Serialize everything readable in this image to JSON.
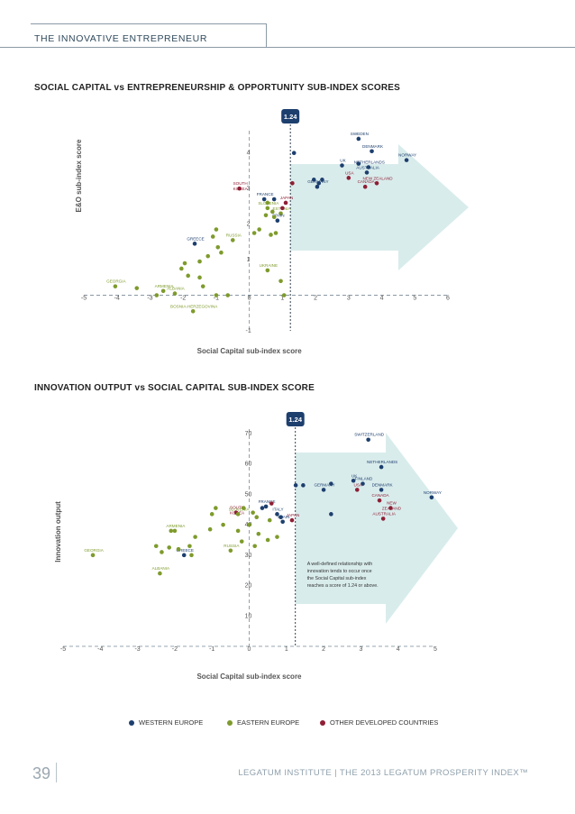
{
  "header": {
    "title": "THE INNOVATIVE ENTREPRENEUR"
  },
  "colors": {
    "western": "#1d3f6e",
    "eastern": "#7e9b2c",
    "other": "#8e1f35",
    "threshold_badge": "#1d3f6e",
    "arrow": "#d2e9e9"
  },
  "threshold_label": "1.24",
  "chart_data": [
    {
      "type": "scatter",
      "title": "SOCIAL CAPITAL vs ENTREPRENEURSHIP & OPPORTUNITY SUB-INDEX SCORES",
      "xlabel": "Social Capital sub-index score",
      "ylabel": "E&O sub-index score",
      "xlim": [
        -5,
        6
      ],
      "ylim": [
        -1,
        4.5
      ],
      "x_ticks": [
        "-5",
        "-4",
        "-3",
        "-2",
        "-1",
        "0",
        "1",
        "2",
        "3",
        "4",
        "5",
        "6"
      ],
      "y_ticks": [
        "-1",
        "1",
        "2",
        "3",
        "4"
      ],
      "threshold_x": 1.24,
      "points": [
        {
          "x": 3.3,
          "y": 4.4,
          "g": "western",
          "label": "SWEDEN"
        },
        {
          "x": 3.7,
          "y": 4.05,
          "g": "western",
          "label": "DENMARK"
        },
        {
          "x": 4.75,
          "y": 3.8,
          "g": "western",
          "label": "NORWAY"
        },
        {
          "x": 2.8,
          "y": 3.65,
          "g": "western",
          "label": "UK"
        },
        {
          "x": 3.6,
          "y": 3.6,
          "g": "western",
          "label": "NETHERLANDS"
        },
        {
          "x": 3.55,
          "y": 3.45,
          "g": "western",
          "label": "AUSTRALIA"
        },
        {
          "x": 3.0,
          "y": 3.3,
          "g": "other",
          "label": "USA"
        },
        {
          "x": 3.85,
          "y": 3.15,
          "g": "other",
          "label": "NEW ZEALAND"
        },
        {
          "x": 3.5,
          "y": 3.05,
          "g": "other",
          "label": "CANADA"
        },
        {
          "x": 2.05,
          "y": 3.05,
          "g": "western",
          "label": "GERMANY"
        },
        {
          "x": -0.3,
          "y": 3.0,
          "g": "other",
          "label": "SOUTH KOREA"
        },
        {
          "x": 0.45,
          "y": 2.7,
          "g": "western",
          "label": "FRANCE"
        },
        {
          "x": 1.1,
          "y": 2.6,
          "g": "other",
          "label": "JAPAN"
        },
        {
          "x": 0.55,
          "y": 2.45,
          "g": "eastern",
          "label": "SLOVENIA"
        },
        {
          "x": 0.95,
          "y": 2.3,
          "g": "eastern",
          "label": "ESTONIA"
        },
        {
          "x": 0.85,
          "y": 2.1,
          "g": "western",
          "label": "SPAIN"
        },
        {
          "x": -1.65,
          "y": 1.45,
          "g": "western",
          "label": "GREECE"
        },
        {
          "x": -0.5,
          "y": 1.55,
          "g": "eastern",
          "label": "RUSSIA"
        },
        {
          "x": 0.55,
          "y": 0.7,
          "g": "eastern",
          "label": "UKRAINE"
        },
        {
          "x": -4.05,
          "y": 0.25,
          "g": "eastern",
          "label": "GEORGIA"
        },
        {
          "x": -2.6,
          "y": 0.12,
          "g": "eastern",
          "label": "ARMENIA"
        },
        {
          "x": -2.25,
          "y": 0.05,
          "g": "eastern",
          "label": "ALBANIA"
        },
        {
          "x": -1.7,
          "y": -0.45,
          "g": "eastern",
          "label": "BOSNIA-HERZEGOVINA"
        },
        {
          "x": 1.35,
          "y": 4.0,
          "g": "western"
        },
        {
          "x": 1.3,
          "y": 3.15,
          "g": "other"
        },
        {
          "x": 1.95,
          "y": 3.25,
          "g": "western"
        },
        {
          "x": 2.2,
          "y": 3.25,
          "g": "western"
        },
        {
          "x": 2.1,
          "y": 3.15,
          "g": "western"
        },
        {
          "x": 3.3,
          "y": 3.7,
          "g": "western"
        },
        {
          "x": 0.75,
          "y": 2.7,
          "g": "western"
        },
        {
          "x": 1.0,
          "y": 2.45,
          "g": "other"
        },
        {
          "x": 0.55,
          "y": 2.6,
          "g": "eastern"
        },
        {
          "x": 0.7,
          "y": 2.35,
          "g": "eastern"
        },
        {
          "x": 0.5,
          "y": 2.25,
          "g": "eastern"
        },
        {
          "x": 0.75,
          "y": 2.2,
          "g": "eastern"
        },
        {
          "x": 0.3,
          "y": 1.85,
          "g": "eastern"
        },
        {
          "x": 0.15,
          "y": 1.75,
          "g": "eastern"
        },
        {
          "x": 0.8,
          "y": 1.75,
          "g": "eastern"
        },
        {
          "x": 0.65,
          "y": 1.7,
          "g": "eastern"
        },
        {
          "x": -1.1,
          "y": 1.65,
          "g": "eastern"
        },
        {
          "x": -1.0,
          "y": 1.85,
          "g": "eastern"
        },
        {
          "x": -0.95,
          "y": 1.35,
          "g": "eastern"
        },
        {
          "x": -1.25,
          "y": 1.1,
          "g": "eastern"
        },
        {
          "x": -0.85,
          "y": 1.2,
          "g": "eastern"
        },
        {
          "x": -1.5,
          "y": 0.95,
          "g": "eastern"
        },
        {
          "x": -1.95,
          "y": 0.9,
          "g": "eastern"
        },
        {
          "x": -2.05,
          "y": 0.75,
          "g": "eastern"
        },
        {
          "x": -1.85,
          "y": 0.55,
          "g": "eastern"
        },
        {
          "x": -1.5,
          "y": 0.5,
          "g": "eastern"
        },
        {
          "x": -1.4,
          "y": 0.25,
          "g": "eastern"
        },
        {
          "x": -0.65,
          "y": 0.0,
          "g": "eastern"
        },
        {
          "x": -1.0,
          "y": 0.0,
          "g": "eastern"
        },
        {
          "x": -2.8,
          "y": 0.0,
          "g": "eastern"
        },
        {
          "x": -3.4,
          "y": 0.2,
          "g": "eastern"
        },
        {
          "x": 0.95,
          "y": 0.4,
          "g": "eastern"
        },
        {
          "x": 1.05,
          "y": 0.0,
          "g": "eastern"
        }
      ]
    },
    {
      "type": "scatter",
      "title": "INNOVATION OUTPUT vs SOCIAL CAPITAL SUB-INDEX SCORE",
      "xlabel": "Social Capital sub-index score",
      "ylabel": "Innovation output",
      "xlim": [
        -5,
        5
      ],
      "ylim": [
        0,
        70
      ],
      "x_ticks": [
        "-5",
        "-4",
        "-3",
        "-2",
        "-1",
        "0",
        "1",
        "2",
        "3",
        "4",
        "5"
      ],
      "y_ticks": [
        "10",
        "20",
        "30",
        "40",
        "50",
        "60",
        "70"
      ],
      "threshold_x": 1.24,
      "annotation": "A well-defined relationship with innovation tends to occur once the Social Capital sub-index reaches a score of 1.24 or above.",
      "points": [
        {
          "x": 3.2,
          "y": 68,
          "g": "western",
          "label": "SWITZERLAND"
        },
        {
          "x": 3.55,
          "y": 59,
          "g": "western",
          "label": "NETHERLANDS"
        },
        {
          "x": 2.8,
          "y": 54.5,
          "g": "western",
          "label": "UK"
        },
        {
          "x": 3.05,
          "y": 53.5,
          "g": "western",
          "label": "FINLAND"
        },
        {
          "x": 3.55,
          "y": 51.5,
          "g": "western",
          "label": "DENMARK"
        },
        {
          "x": 4.9,
          "y": 49,
          "g": "western",
          "label": "NORWAY"
        },
        {
          "x": 2.0,
          "y": 51.5,
          "g": "western",
          "label": "GERMANY"
        },
        {
          "x": 2.9,
          "y": 51.5,
          "g": "other",
          "label": "USA"
        },
        {
          "x": 3.5,
          "y": 48,
          "g": "other",
          "label": "CANADA"
        },
        {
          "x": 3.8,
          "y": 45.5,
          "g": "other",
          "label": "NEW ZEALAND"
        },
        {
          "x": 3.6,
          "y": 42,
          "g": "other",
          "label": "AUSTRALIA"
        },
        {
          "x": 0.45,
          "y": 46,
          "g": "western",
          "label": "FRANCE"
        },
        {
          "x": -0.35,
          "y": 44,
          "g": "other",
          "label": "SOUTH KOREA"
        },
        {
          "x": -0.3,
          "y": 43.5,
          "g": "eastern",
          "label": "SLOVENIA"
        },
        {
          "x": 0.75,
          "y": 43.5,
          "g": "western",
          "label": "ITALY"
        },
        {
          "x": 1.15,
          "y": 41.5,
          "g": "other",
          "label": "JAPAN"
        },
        {
          "x": 0.9,
          "y": 41,
          "g": "western",
          "label": "SPAIN"
        },
        {
          "x": -0.5,
          "y": 31.5,
          "g": "eastern",
          "label": "RUSSIA"
        },
        {
          "x": -1.75,
          "y": 30,
          "g": "western",
          "label": "GREECE"
        },
        {
          "x": -2.0,
          "y": 38,
          "g": "eastern",
          "label": "ARMENIA"
        },
        {
          "x": -4.2,
          "y": 30,
          "g": "eastern",
          "label": "GEORGIA"
        },
        {
          "x": -2.4,
          "y": 24,
          "g": "eastern",
          "label": "ALBANIA"
        },
        {
          "x": 1.25,
          "y": 53,
          "g": "western"
        },
        {
          "x": 1.45,
          "y": 53,
          "g": "western"
        },
        {
          "x": 2.2,
          "y": 53.5,
          "g": "western"
        },
        {
          "x": 0.6,
          "y": 47,
          "g": "other"
        },
        {
          "x": 0.35,
          "y": 45.5,
          "g": "western"
        },
        {
          "x": -0.15,
          "y": 45.5,
          "g": "eastern"
        },
        {
          "x": 0.1,
          "y": 44,
          "g": "eastern"
        },
        {
          "x": 0.2,
          "y": 42.5,
          "g": "eastern"
        },
        {
          "x": 0.55,
          "y": 41.5,
          "g": "eastern"
        },
        {
          "x": 0.85,
          "y": 42.5,
          "g": "western"
        },
        {
          "x": 2.2,
          "y": 43.5,
          "g": "western"
        },
        {
          "x": -0.9,
          "y": 45.5,
          "g": "eastern"
        },
        {
          "x": -1.0,
          "y": 43.5,
          "g": "eastern"
        },
        {
          "x": -1.05,
          "y": 38.5,
          "g": "eastern"
        },
        {
          "x": -0.7,
          "y": 40,
          "g": "eastern"
        },
        {
          "x": -0.3,
          "y": 38,
          "g": "eastern"
        },
        {
          "x": 0.0,
          "y": 40,
          "g": "eastern"
        },
        {
          "x": 0.25,
          "y": 37,
          "g": "eastern"
        },
        {
          "x": 0.5,
          "y": 35,
          "g": "eastern"
        },
        {
          "x": 0.75,
          "y": 36,
          "g": "eastern"
        },
        {
          "x": 0.15,
          "y": 33,
          "g": "eastern"
        },
        {
          "x": -0.2,
          "y": 34.5,
          "g": "eastern"
        },
        {
          "x": -1.45,
          "y": 36,
          "g": "eastern"
        },
        {
          "x": -1.6,
          "y": 33,
          "g": "eastern"
        },
        {
          "x": -2.1,
          "y": 38,
          "g": "eastern"
        },
        {
          "x": -1.55,
          "y": 30,
          "g": "eastern"
        },
        {
          "x": -1.9,
          "y": 32,
          "g": "eastern"
        },
        {
          "x": -2.15,
          "y": 32.5,
          "g": "eastern"
        },
        {
          "x": -2.35,
          "y": 31,
          "g": "eastern"
        },
        {
          "x": -2.5,
          "y": 33,
          "g": "eastern"
        }
      ]
    }
  ],
  "legend": [
    {
      "label": "WESTERN EUROPE",
      "g": "western"
    },
    {
      "label": "EASTERN EUROPE",
      "g": "eastern"
    },
    {
      "label": "OTHER DEVELOPED COUNTRIES",
      "g": "other"
    }
  ],
  "footer": {
    "page": "39",
    "text": "LEGATUM INSTITUTE | THE 2013 LEGATUM PROSPERITY INDEX™"
  }
}
